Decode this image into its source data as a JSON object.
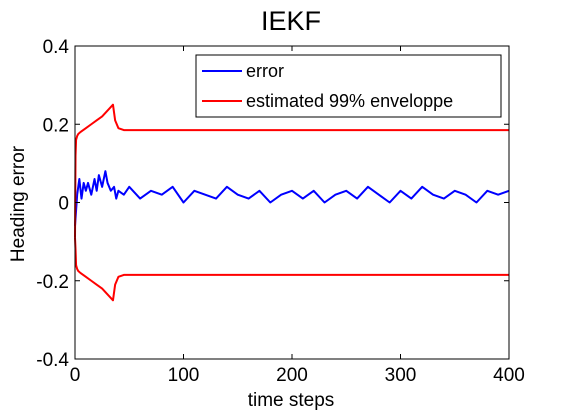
{
  "chart_data": {
    "type": "line",
    "title": "IEKF",
    "xlabel": "time steps",
    "ylabel": "Heading error",
    "xlim": [
      0,
      400
    ],
    "ylim": [
      -0.4,
      0.4
    ],
    "xticks": [
      0,
      100,
      200,
      300,
      400
    ],
    "xtick_labels": [
      "0",
      "100",
      "200",
      "300",
      "400"
    ],
    "yticks": [
      -0.4,
      -0.2,
      0,
      0.2,
      0.4
    ],
    "ytick_labels": [
      "-0.4",
      "-0.2",
      "0",
      "0.2",
      "0.4"
    ],
    "grid": false,
    "legend_position": "top-right",
    "series": [
      {
        "name": "error",
        "color": "#0000ff",
        "x": [
          0,
          2,
          4,
          6,
          8,
          10,
          12,
          15,
          18,
          20,
          22,
          25,
          28,
          30,
          33,
          36,
          38,
          40,
          45,
          50,
          60,
          70,
          80,
          90,
          100,
          110,
          120,
          130,
          140,
          150,
          160,
          170,
          180,
          190,
          200,
          210,
          220,
          230,
          240,
          250,
          260,
          270,
          280,
          290,
          300,
          310,
          320,
          330,
          340,
          350,
          360,
          370,
          380,
          390,
          400
        ],
        "y": [
          -0.06,
          0.02,
          0.06,
          0.01,
          0.05,
          0.03,
          0.05,
          0.02,
          0.06,
          0.03,
          0.07,
          0.04,
          0.08,
          0.05,
          0.03,
          0.04,
          0.01,
          0.03,
          0.02,
          0.04,
          0.01,
          0.03,
          0.02,
          0.04,
          0.0,
          0.03,
          0.02,
          0.01,
          0.04,
          0.02,
          0.01,
          0.03,
          0.0,
          0.02,
          0.03,
          0.01,
          0.03,
          0.0,
          0.02,
          0.03,
          0.01,
          0.04,
          0.02,
          0.0,
          0.03,
          0.01,
          0.04,
          0.02,
          0.01,
          0.03,
          0.02,
          0.0,
          0.03,
          0.02,
          0.03
        ]
      },
      {
        "name": "estimated 99% enveloppe",
        "color": "#ff0000",
        "x": [
          0,
          0.5,
          1,
          2,
          3,
          5,
          10,
          15,
          20,
          25,
          30,
          35,
          37,
          40,
          45,
          50,
          100,
          200,
          300,
          400
        ],
        "y": [
          -0.09,
          0.12,
          0.16,
          0.17,
          0.175,
          0.18,
          0.19,
          0.2,
          0.21,
          0.22,
          0.235,
          0.25,
          0.21,
          0.19,
          0.185,
          0.185,
          0.185,
          0.185,
          0.185,
          0.185
        ]
      },
      {
        "name": "",
        "color": "#ff0000",
        "x": [
          0,
          0.5,
          1,
          2,
          3,
          5,
          10,
          15,
          20,
          25,
          30,
          35,
          37,
          40,
          45,
          50,
          100,
          200,
          300,
          400
        ],
        "y": [
          -0.09,
          -0.12,
          -0.16,
          -0.17,
          -0.175,
          -0.18,
          -0.19,
          -0.2,
          -0.21,
          -0.22,
          -0.235,
          -0.25,
          -0.21,
          -0.19,
          -0.185,
          -0.185,
          -0.185,
          -0.185,
          -0.185,
          -0.185
        ]
      }
    ],
    "legend": [
      {
        "label": "error",
        "color": "#0000ff"
      },
      {
        "label": "estimated 99% enveloppe",
        "color": "#ff0000"
      }
    ]
  }
}
